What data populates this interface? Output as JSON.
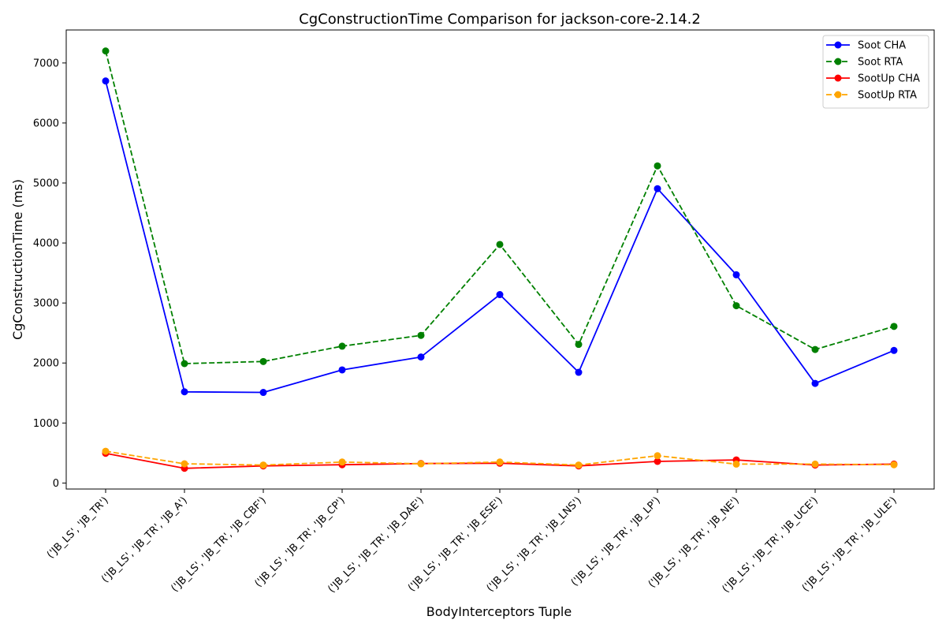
{
  "chart_data": {
    "type": "line",
    "title": "CgConstructionTime Comparison for jackson-core-2.14.2",
    "xlabel": "BodyInterceptors Tuple",
    "ylabel": "CgConstructionTime (ms)",
    "ylim": [
      -100,
      7550
    ],
    "yticks": [
      0,
      1000,
      2000,
      3000,
      4000,
      5000,
      6000,
      7000
    ],
    "grid": false,
    "legend_position": "top-right",
    "categories": [
      "('JB_LS', 'JB_TR')",
      "('JB_LS', 'JB_TR', 'JB_A')",
      "('JB_LS', 'JB_TR', 'JB_CBF')",
      "('JB_LS', 'JB_TR', 'JB_CP')",
      "('JB_LS', 'JB_TR', 'JB_DAE')",
      "('JB_LS', 'JB_TR', 'JB_ESE')",
      "('JB_LS', 'JB_TR', 'JB_LNS')",
      "('JB_LS', 'JB_TR', 'JB_LP')",
      "('JB_LS', 'JB_TR', 'JB_NE')",
      "('JB_LS', 'JB_TR', 'JB_UCE')",
      "('JB_LS', 'JB_TR', 'JB_ULE')"
    ],
    "series": [
      {
        "name": "Soot CHA",
        "color": "#0000ff",
        "dashed": false,
        "values": [
          6700,
          1520,
          1510,
          1885,
          2100,
          3140,
          1845,
          4905,
          3470,
          1660,
          2210
        ]
      },
      {
        "name": "Soot RTA",
        "color": "#008000",
        "dashed": true,
        "values": [
          7200,
          1990,
          2025,
          2280,
          2460,
          3975,
          2310,
          5285,
          2955,
          2225,
          2610
        ]
      },
      {
        "name": "SootUp CHA",
        "color": "#ff0000",
        "dashed": false,
        "values": [
          495,
          245,
          285,
          305,
          325,
          330,
          285,
          360,
          385,
          300,
          315
        ]
      },
      {
        "name": "SootUp RTA",
        "color": "#ffa500",
        "dashed": true,
        "values": [
          530,
          320,
          300,
          350,
          320,
          350,
          300,
          455,
          315,
          315,
          305
        ]
      }
    ]
  }
}
